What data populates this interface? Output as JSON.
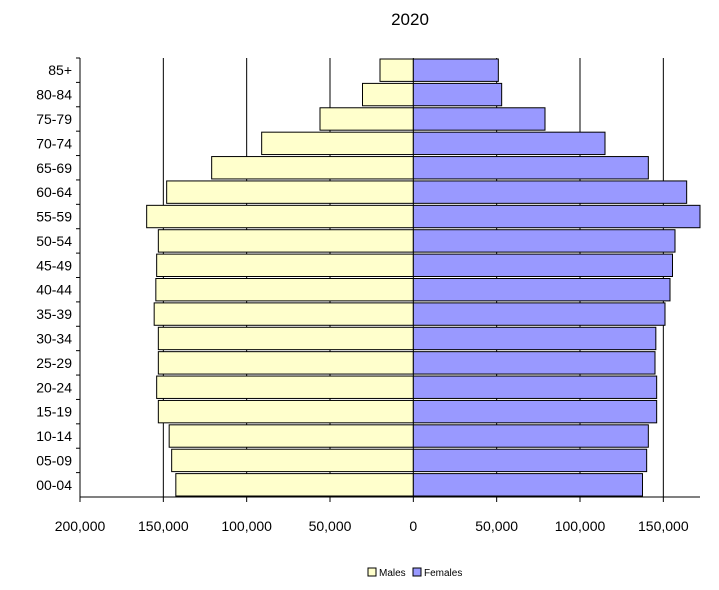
{
  "chart_data": {
    "type": "bar",
    "orientation": "horizontal",
    "layout": "population-pyramid",
    "title": "2020",
    "categories": [
      "85+",
      "80-84",
      "75-79",
      "70-74",
      "65-69",
      "60-64",
      "55-59",
      "50-54",
      "45-49",
      "40-44",
      "35-39",
      "30-34",
      "25-29",
      "20-24",
      "15-19",
      "10-14",
      "05-09",
      "00-04"
    ],
    "series": [
      {
        "name": "Males",
        "color": "#ffffcc",
        "values": [
          20000,
          30500,
          56000,
          91000,
          121000,
          148000,
          160000,
          153000,
          154000,
          154500,
          155500,
          153000,
          153000,
          154000,
          153000,
          146500,
          145000,
          142500
        ]
      },
      {
        "name": "Females",
        "color": "#9999ff",
        "values": [
          51000,
          53000,
          79000,
          115000,
          141000,
          164000,
          172000,
          157000,
          155500,
          154000,
          151000,
          145500,
          145000,
          146000,
          146000,
          141000,
          140000,
          137500
        ]
      }
    ],
    "x_ticks": [
      "200,000",
      "150,000",
      "100,000",
      "50,000",
      "0",
      "50,000",
      "100,000",
      "150,000"
    ],
    "x_tick_values": [
      -200000,
      -150000,
      -100000,
      -50000,
      0,
      50000,
      100000,
      150000
    ],
    "xlim": [
      -200000,
      172000
    ],
    "xlabel": "",
    "ylabel": "",
    "grid": "vertical",
    "legend_position": "bottom-center",
    "colors": {
      "gridline": "#000000",
      "bar_outline": "#000000",
      "axis": "#000000"
    }
  }
}
